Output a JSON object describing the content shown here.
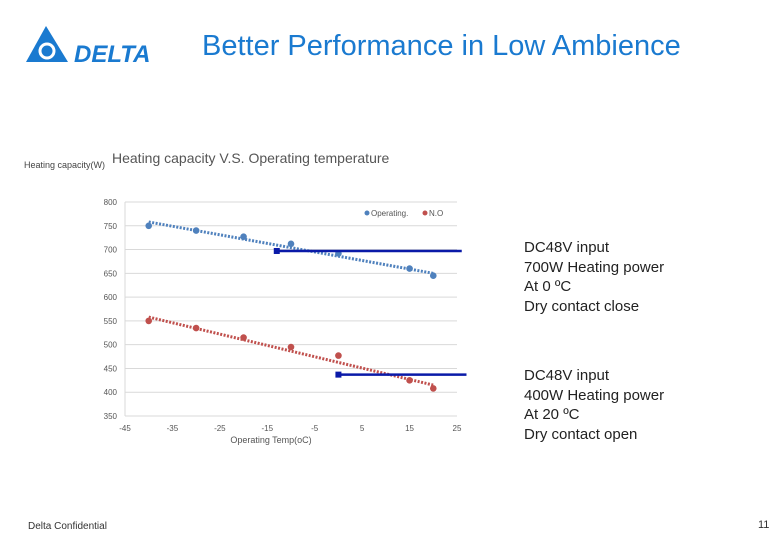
{
  "header": {
    "title": "Better Performance in Low Ambience",
    "logo_text": "DELTA"
  },
  "footer": {
    "confidential": "Delta Confidential",
    "page_number": "11"
  },
  "notes": [
    {
      "lines": [
        "DC48V input",
        "700W Heating power",
        "At 0 ºC",
        "Dry contact close"
      ]
    },
    {
      "lines": [
        "DC48V input",
        "400W Heating power",
        "At 20 ºC",
        "Dry contact open"
      ]
    }
  ],
  "chart_data": {
    "type": "scatter",
    "title": "Heating capacity V.S. Operating temperature",
    "xlabel": "Operating Temp(oC)",
    "ylabel": "Heating capacity(W)",
    "xlim": [
      -45,
      25
    ],
    "ylim": [
      350,
      800
    ],
    "xticks": [
      "-45",
      "-35",
      "-25",
      "-15",
      "-5",
      "5",
      "15",
      "25"
    ],
    "yticks": [
      "800",
      "750",
      "700",
      "650",
      "600",
      "550",
      "500",
      "450",
      "400",
      "350"
    ],
    "grid": true,
    "legend": "top-right",
    "series": [
      {
        "name": "Operating.",
        "color": "#4f81bd",
        "x": [
          -40,
          -30,
          -20,
          -10,
          0,
          15,
          20
        ],
        "y": [
          750,
          740,
          727,
          712,
          692,
          660,
          645
        ],
        "trend": [
          [
            -40,
            758
          ],
          [
            20,
            650
          ]
        ]
      },
      {
        "name": "N.O",
        "color": "#c0504d",
        "x": [
          -40,
          -30,
          -20,
          -10,
          0,
          15,
          20
        ],
        "y": [
          550,
          535,
          515,
          495,
          477,
          425,
          408
        ],
        "trend": [
          [
            -40,
            558
          ],
          [
            20,
            415
          ]
        ]
      }
    ],
    "markers": [
      {
        "color": "#0a1aa8",
        "y": 697,
        "x": [
          -13,
          26
        ]
      },
      {
        "color": "#0a1aa8",
        "y": 437,
        "x": [
          0,
          27
        ]
      }
    ]
  }
}
